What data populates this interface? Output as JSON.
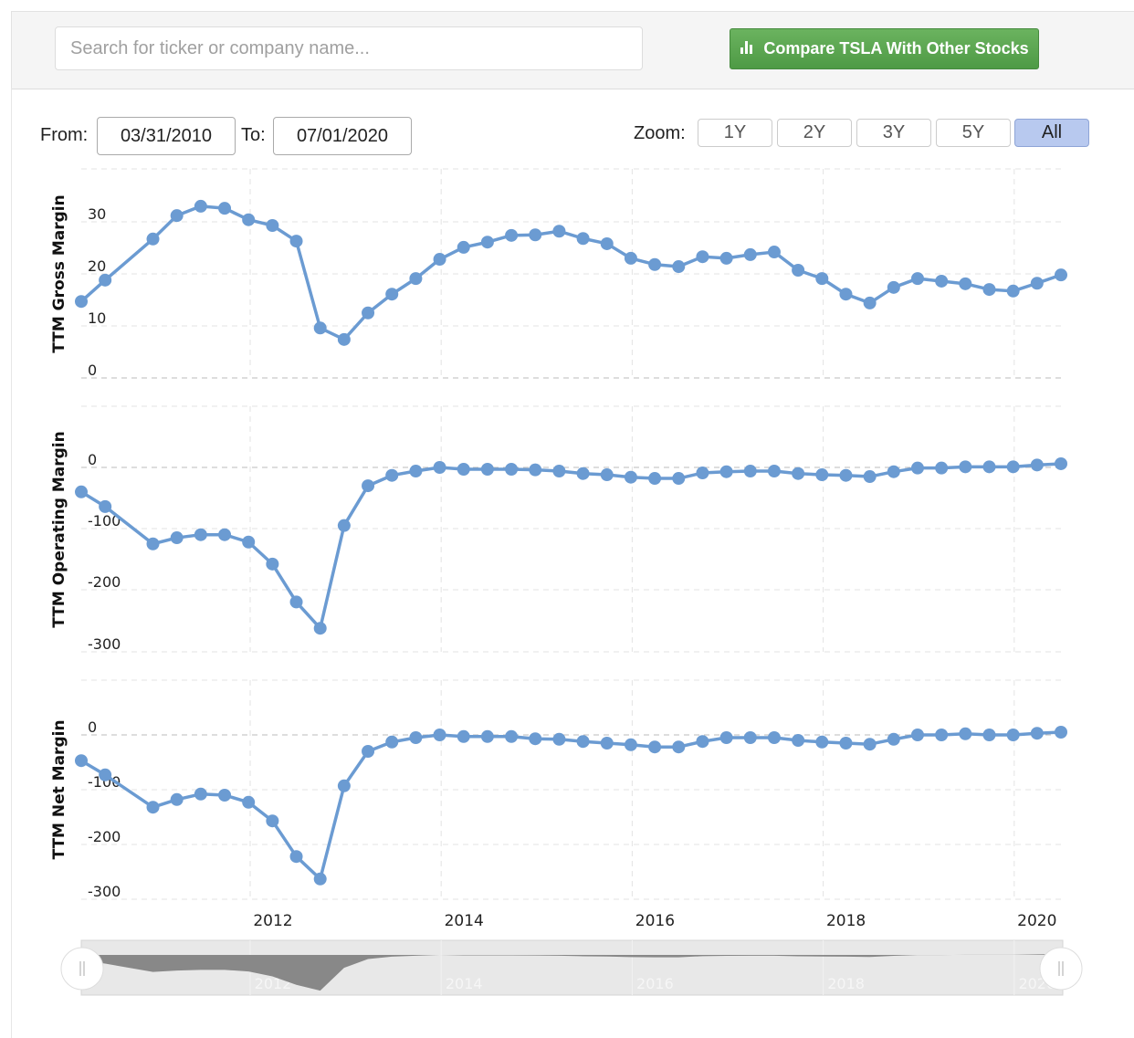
{
  "search": {
    "placeholder": "Search for ticker or company name..."
  },
  "compare_button": {
    "label": "Compare TSLA With Other Stocks",
    "icon": "bar-chart-icon"
  },
  "range": {
    "from_label": "From:",
    "from_value": "03/31/2010",
    "to_label": "To:",
    "to_value": "07/01/2020"
  },
  "zoom": {
    "label": "Zoom:",
    "options": [
      "1Y",
      "2Y",
      "3Y",
      "5Y",
      "All"
    ],
    "selected": "All"
  },
  "colors": {
    "series": "#6b9bd2",
    "accent": "#5aa651",
    "navigator": "#888888"
  },
  "chart_data": [
    {
      "type": "line",
      "ylabel": "TTM Gross Margin",
      "yticks": [
        "0",
        "10",
        "20",
        "30"
      ],
      "ylim": [
        0,
        35
      ],
      "x": [
        "2010-Q1",
        "2010-Q2",
        "2010-Q4",
        "2011-Q1",
        "2011-Q2",
        "2011-Q3",
        "2011-Q4",
        "2012-Q1",
        "2012-Q2",
        "2012-Q3",
        "2012-Q4",
        "2013-Q1",
        "2013-Q2",
        "2013-Q3",
        "2013-Q4",
        "2014-Q1",
        "2014-Q2",
        "2014-Q3",
        "2014-Q4",
        "2015-Q1",
        "2015-Q2",
        "2015-Q3",
        "2015-Q4",
        "2016-Q1",
        "2016-Q2",
        "2016-Q3",
        "2016-Q4",
        "2017-Q1",
        "2017-Q2",
        "2017-Q3",
        "2017-Q4",
        "2018-Q1",
        "2018-Q2",
        "2018-Q3",
        "2018-Q4",
        "2019-Q1",
        "2019-Q2",
        "2019-Q3",
        "2019-Q4",
        "2020-Q1",
        "2020-Q2"
      ],
      "values": [
        14.7,
        18.8,
        26.7,
        31.2,
        33,
        32.6,
        30.4,
        29.3,
        26.3,
        9.6,
        7.4,
        12.5,
        16.1,
        19.1,
        22.8,
        25.1,
        26.1,
        27.4,
        27.5,
        28.2,
        26.8,
        25.8,
        23,
        21.8,
        21.4,
        23.3,
        23,
        23.7,
        24.2,
        20.7,
        19.1,
        16.1,
        14.4,
        17.4,
        19.1,
        18.6,
        18.1,
        17,
        16.7,
        18.2,
        19.8
      ]
    },
    {
      "type": "line",
      "ylabel": "TTM Operating Margin",
      "yticks": [
        "0",
        "-100",
        "-200",
        "-300"
      ],
      "ylim": [
        -300,
        15
      ],
      "values": [
        -40,
        -64,
        -125,
        -115,
        -110,
        -110,
        -122,
        -158,
        -220,
        -263,
        -95,
        -30,
        -13,
        -6,
        0,
        -3,
        -3,
        -3,
        -4,
        -6,
        -10,
        -12,
        -16,
        -18,
        -18,
        -9,
        -7,
        -6,
        -6,
        -10,
        -12,
        -13,
        -15,
        -7,
        -1,
        -1,
        1,
        1,
        1,
        4,
        6
      ]
    },
    {
      "type": "line",
      "ylabel": "TTM Net Margin",
      "yticks": [
        "0",
        "-100",
        "-200",
        "-300"
      ],
      "ylim": [
        -300,
        10
      ],
      "values": [
        -47,
        -73,
        -132,
        -118,
        -108,
        -110,
        -123,
        -157,
        -222,
        -263,
        -93,
        -30,
        -13,
        -5,
        0,
        -3,
        -3,
        -3,
        -7,
        -8,
        -12,
        -15,
        -18,
        -22,
        -22,
        -12,
        -5,
        -5,
        -5,
        -10,
        -13,
        -15,
        -17,
        -8,
        0,
        0,
        2,
        0,
        0,
        3,
        5
      ]
    }
  ],
  "xaxis": {
    "ticks": [
      "2012",
      "2014",
      "2016",
      "2018",
      "2020"
    ]
  }
}
